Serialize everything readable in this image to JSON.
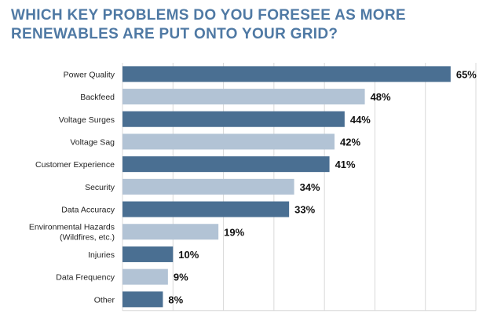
{
  "chart_data": {
    "type": "bar",
    "orientation": "horizontal",
    "title": "WHICH KEY PROBLEMS DO YOU FORESEE AS MORE RENEWABLES ARE PUT ONTO YOUR GRID?",
    "categories": [
      "Power Quality",
      "Backfeed",
      "Voltage Surges",
      "Voltage Sag",
      "Customer Experience",
      "Security",
      "Data Accuracy",
      "Environmental Hazards\n(Wildfires, etc.)",
      "Injuries",
      "Data Frequency",
      "Other"
    ],
    "values": [
      65,
      48,
      44,
      42,
      41,
      34,
      33,
      19,
      10,
      9,
      8
    ],
    "value_labels": [
      "65%",
      "48%",
      "44%",
      "42%",
      "41%",
      "34%",
      "33%",
      "19%",
      "10%",
      "9%",
      "8%"
    ],
    "xlim": [
      0,
      70
    ],
    "grid": true,
    "colors": {
      "dark": "#4a6f92",
      "light": "#b2c3d5",
      "title": "#4f79a4",
      "grid": "#d9d9d9"
    }
  }
}
